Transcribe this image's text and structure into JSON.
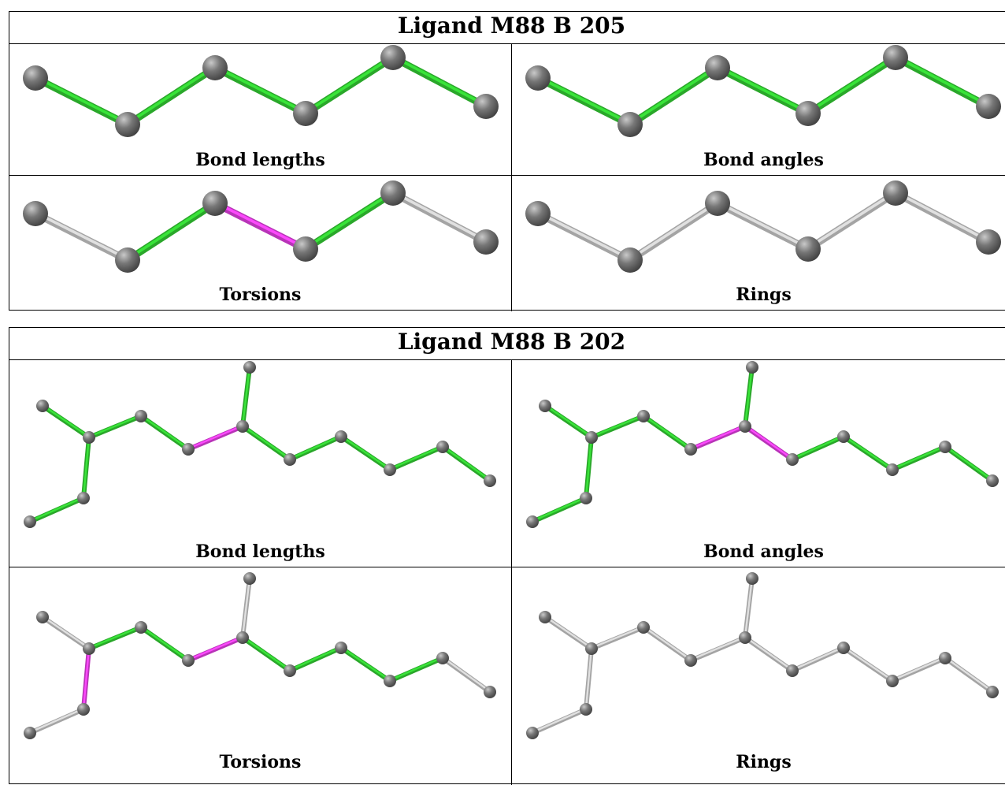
{
  "blocks": [
    {
      "title": "Ligand M88 B 205",
      "panels": [
        {
          "caption": "Bond lengths",
          "bond_colors": [
            "green",
            "green",
            "green",
            "green",
            "green"
          ]
        },
        {
          "caption": "Bond angles",
          "bond_colors": [
            "green",
            "green",
            "green",
            "green",
            "green"
          ]
        },
        {
          "caption": "Torsions",
          "bond_colors": [
            "gray",
            "green",
            "magenta",
            "green",
            "gray"
          ]
        },
        {
          "caption": "Rings",
          "bond_colors": [
            "gray",
            "gray",
            "gray",
            "gray",
            "gray"
          ]
        }
      ]
    },
    {
      "title": "Ligand M88 B 202",
      "panels": [
        {
          "caption": "Bond lengths",
          "bond_colors": [
            "green",
            "green",
            "green",
            "green",
            "green",
            "magenta",
            "green",
            "green",
            "green",
            "green",
            "green",
            "green"
          ]
        },
        {
          "caption": "Bond angles",
          "bond_colors": [
            "green",
            "green",
            "green",
            "green",
            "green",
            "magenta",
            "green",
            "magenta",
            "green",
            "green",
            "green",
            "green"
          ]
        },
        {
          "caption": "Torsions",
          "bond_colors": [
            "gray",
            "magenta",
            "gray",
            "green",
            "green",
            "magenta",
            "gray",
            "green",
            "green",
            "green",
            "green",
            "gray"
          ]
        },
        {
          "caption": "Rings",
          "bond_colors": [
            "gray",
            "gray",
            "gray",
            "gray",
            "gray",
            "gray",
            "gray",
            "gray",
            "gray",
            "gray",
            "gray",
            "gray"
          ]
        }
      ]
    }
  ],
  "colors": {
    "green": "#33cc33",
    "magenta": "#e040e0",
    "gray": "#c8c8c8",
    "atom": "#777777"
  }
}
